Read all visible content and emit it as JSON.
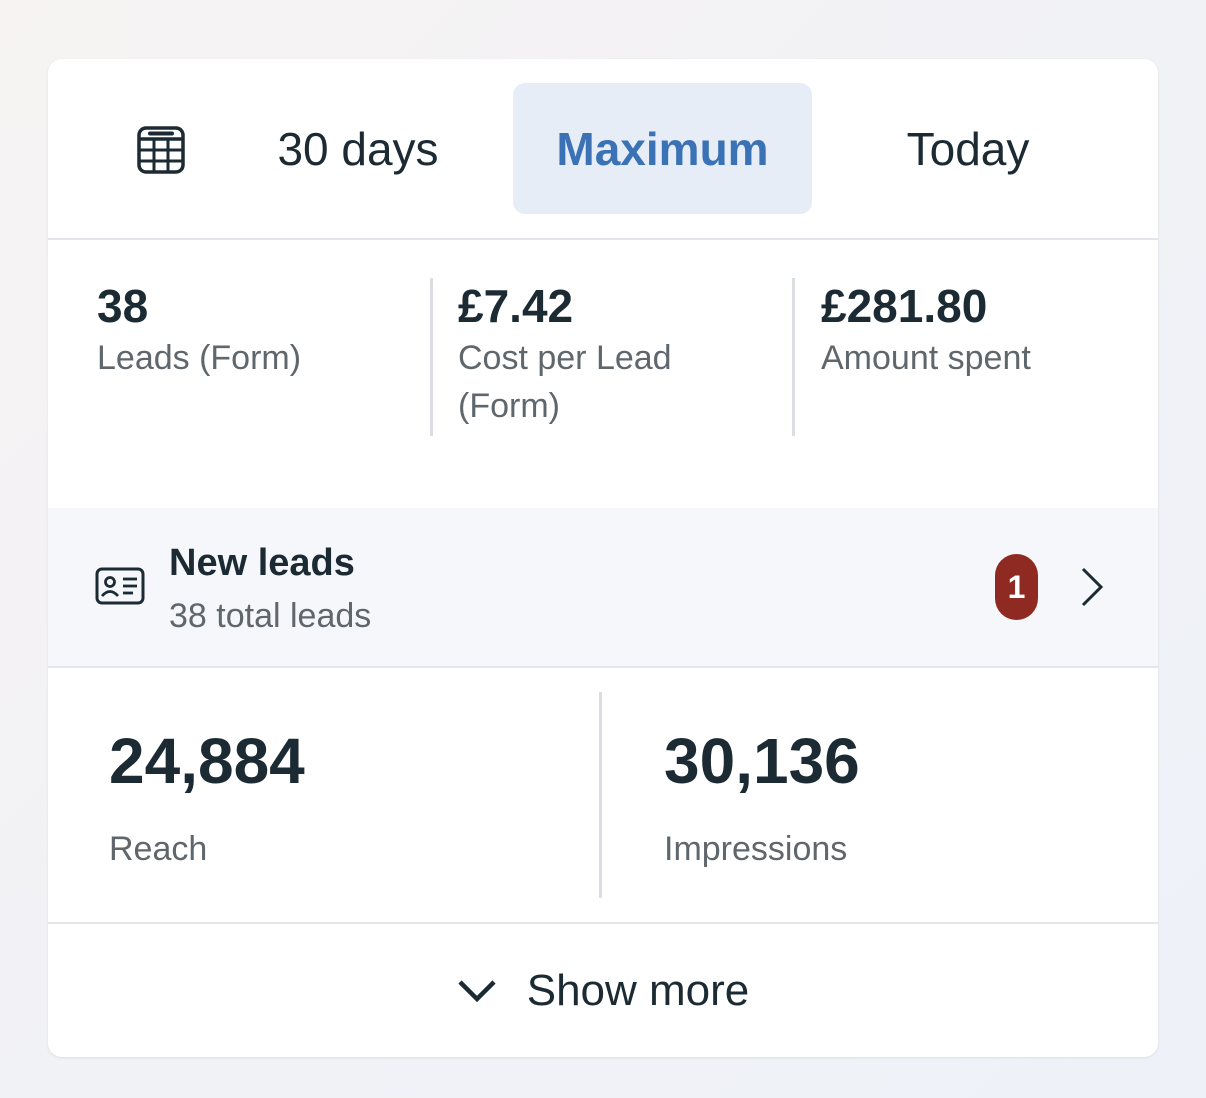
{
  "date_tabs": {
    "calendar_icon": "calendar-table-icon",
    "items": [
      {
        "label": "30 days",
        "selected": false
      },
      {
        "label": "Maximum",
        "selected": true
      },
      {
        "label": "Today",
        "selected": false
      }
    ]
  },
  "metrics": [
    {
      "value": "38",
      "label": "Leads (Form)"
    },
    {
      "value": "£7.42",
      "label": "Cost per Lead (Form)"
    },
    {
      "value": "£281.80",
      "label": "Amount spent"
    }
  ],
  "new_leads": {
    "icon": "contact-card-icon",
    "title": "New leads",
    "subtitle": "38 total leads",
    "badge_count": "1",
    "chevron_icon": "chevron-right-icon"
  },
  "stats": [
    {
      "value": "24,884",
      "label": "Reach"
    },
    {
      "value": "30,136",
      "label": "Impressions"
    }
  ],
  "show_more": {
    "icon": "chevron-down-icon",
    "label": "Show more"
  },
  "colors": {
    "selected_tab_bg": "#e6edf6",
    "selected_tab_text": "#3a72b5",
    "badge_bg": "#8f2a22",
    "text_primary": "#1c2b33",
    "text_secondary": "#60676c"
  }
}
